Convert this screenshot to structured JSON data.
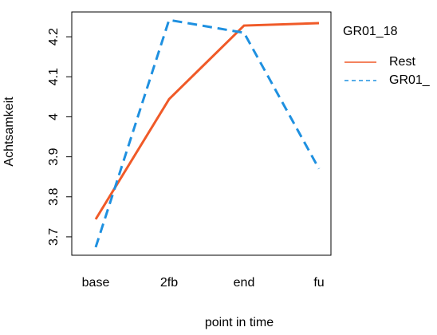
{
  "chart_data": {
    "type": "line",
    "xlabel": "point in time",
    "ylabel": "Achtsamkeit",
    "categories": [
      "base",
      "2fb",
      "end",
      "fu"
    ],
    "series": [
      {
        "name": "Rest",
        "color": "#f05a28",
        "dash": false,
        "values": [
          3.744,
          4.044,
          4.228,
          4.234
        ]
      },
      {
        "name": "GR01_",
        "color": "#1e90e0",
        "dash": true,
        "values": [
          3.674,
          4.242,
          4.21,
          3.87
        ]
      }
    ],
    "legend_title": "GR01_18",
    "ylim": [
      3.654,
      4.262
    ],
    "yticks": [
      3.7,
      3.8,
      3.9,
      4.0,
      4.1,
      4.2
    ]
  }
}
